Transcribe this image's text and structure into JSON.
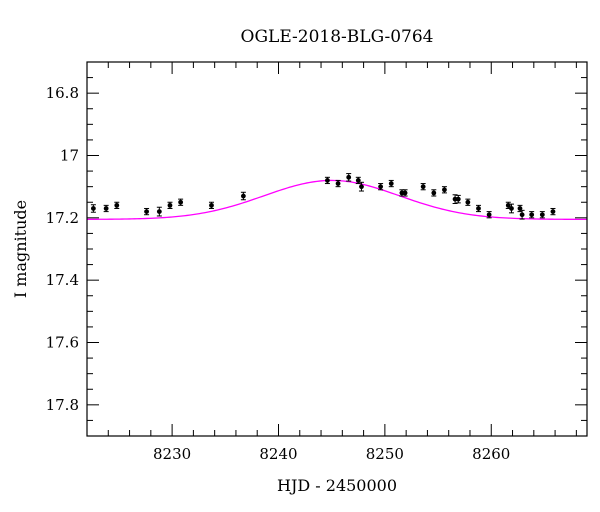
{
  "chart_data": {
    "type": "scatter",
    "title": "OGLE-2018-BLG-0764",
    "xlabel": "HJD - 2450000",
    "ylabel": "I magnitude",
    "xlim": [
      8222,
      8269
    ],
    "ylim": [
      17.9,
      16.7
    ],
    "y_inverted": true,
    "x_ticks": [
      8230,
      8240,
      8250,
      8260
    ],
    "y_ticks": [
      16.8,
      17,
      17.2,
      17.4,
      17.6,
      17.8
    ],
    "x_tick_labels": [
      "8230",
      "8240",
      "8250",
      "8260"
    ],
    "y_tick_labels": [
      "16.8",
      "17",
      "17.2",
      "17.4",
      "17.6",
      "17.8"
    ],
    "grid": false,
    "model_color": "#ff00ff",
    "model": {
      "t0": 8245.0,
      "baseline": 17.205,
      "peak_mag": 17.08,
      "width": 9.0
    },
    "points": [
      {
        "x": 8222.6,
        "y": 17.17,
        "err": 0.012
      },
      {
        "x": 8223.8,
        "y": 17.17,
        "err": 0.01
      },
      {
        "x": 8224.8,
        "y": 17.16,
        "err": 0.01
      },
      {
        "x": 8227.6,
        "y": 17.18,
        "err": 0.01
      },
      {
        "x": 8228.8,
        "y": 17.18,
        "err": 0.014
      },
      {
        "x": 8229.8,
        "y": 17.16,
        "err": 0.01
      },
      {
        "x": 8230.8,
        "y": 17.15,
        "err": 0.01
      },
      {
        "x": 8233.7,
        "y": 17.16,
        "err": 0.01
      },
      {
        "x": 8236.7,
        "y": 17.13,
        "err": 0.012
      },
      {
        "x": 8244.6,
        "y": 17.08,
        "err": 0.01
      },
      {
        "x": 8245.6,
        "y": 17.09,
        "err": 0.01
      },
      {
        "x": 8246.6,
        "y": 17.07,
        "err": 0.012
      },
      {
        "x": 8247.5,
        "y": 17.08,
        "err": 0.01
      },
      {
        "x": 8247.8,
        "y": 17.1,
        "err": 0.014
      },
      {
        "x": 8249.6,
        "y": 17.1,
        "err": 0.01
      },
      {
        "x": 8250.6,
        "y": 17.09,
        "err": 0.01
      },
      {
        "x": 8251.6,
        "y": 17.12,
        "err": 0.01
      },
      {
        "x": 8251.9,
        "y": 17.12,
        "err": 0.01
      },
      {
        "x": 8253.6,
        "y": 17.1,
        "err": 0.01
      },
      {
        "x": 8254.6,
        "y": 17.12,
        "err": 0.01
      },
      {
        "x": 8255.6,
        "y": 17.11,
        "err": 0.01
      },
      {
        "x": 8256.6,
        "y": 17.14,
        "err": 0.014
      },
      {
        "x": 8256.9,
        "y": 17.14,
        "err": 0.012
      },
      {
        "x": 8257.8,
        "y": 17.15,
        "err": 0.01
      },
      {
        "x": 8258.8,
        "y": 17.17,
        "err": 0.01
      },
      {
        "x": 8259.8,
        "y": 17.19,
        "err": 0.01
      },
      {
        "x": 8261.6,
        "y": 17.16,
        "err": 0.01
      },
      {
        "x": 8261.9,
        "y": 17.17,
        "err": 0.014
      },
      {
        "x": 8262.7,
        "y": 17.17,
        "err": 0.01
      },
      {
        "x": 8262.9,
        "y": 17.19,
        "err": 0.014
      },
      {
        "x": 8263.8,
        "y": 17.19,
        "err": 0.01
      },
      {
        "x": 8264.8,
        "y": 17.19,
        "err": 0.01
      },
      {
        "x": 8265.8,
        "y": 17.18,
        "err": 0.01
      }
    ]
  }
}
